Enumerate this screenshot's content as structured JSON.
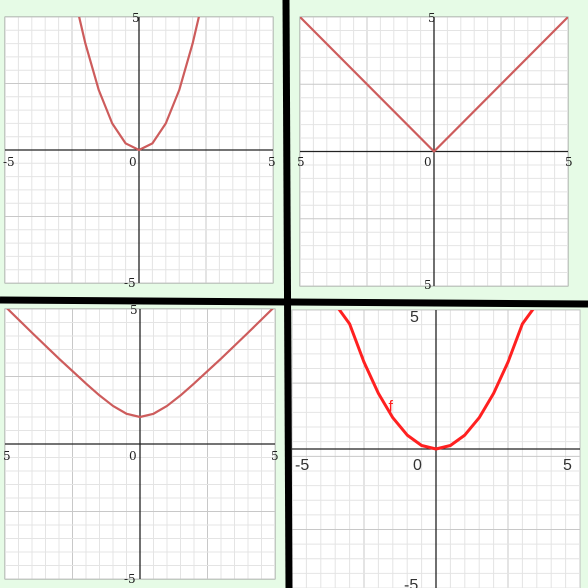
{
  "chart_data": [
    {
      "type": "line",
      "title": "",
      "xlim": [
        -5,
        5
      ],
      "ylim": [
        -5,
        5
      ],
      "grid": true,
      "x_tick_labels": [
        "-5",
        "0",
        "5"
      ],
      "y_tick_labels": [
        "5",
        "-5"
      ],
      "series": [
        {
          "x": [
            -2.3,
            -2,
            -1.5,
            -1,
            -0.5,
            0,
            0.5,
            1,
            1.5,
            2,
            2.3
          ],
          "y": [
            5.29,
            4,
            2.25,
            1,
            0.25,
            0,
            0.25,
            1,
            2.25,
            4,
            5.29
          ],
          "color": "#cd5c5c"
        }
      ]
    },
    {
      "type": "line",
      "title": "",
      "xlim": [
        -5,
        5
      ],
      "ylim": [
        -5,
        5
      ],
      "grid": true,
      "x_tick_labels": [
        "5",
        "0",
        "5"
      ],
      "y_tick_labels": [
        "5",
        "5"
      ],
      "series": [
        {
          "x": [
            -5,
            0,
            5
          ],
          "y": [
            5,
            0,
            5
          ],
          "color": "#cd5c5c"
        }
      ]
    },
    {
      "type": "line",
      "title": "",
      "xlim": [
        -5,
        5
      ],
      "ylim": [
        -5,
        5
      ],
      "grid": true,
      "x_tick_labels": [
        "5",
        "0",
        "5"
      ],
      "y_tick_labels": [
        "5",
        "-5"
      ],
      "series": [
        {
          "x": [
            -5,
            -4,
            -3,
            -2,
            -1.5,
            -1,
            -0.5,
            0,
            0.5,
            1,
            1.5,
            2,
            3,
            4,
            5
          ],
          "y": [
            5.1,
            4.12,
            3.16,
            2.24,
            1.8,
            1.41,
            1.12,
            1,
            1.12,
            1.41,
            1.8,
            2.24,
            3.16,
            4.12,
            5.1
          ],
          "color": "#cd5c5c"
        }
      ]
    },
    {
      "type": "line",
      "title": "",
      "xlim": [
        -5,
        5
      ],
      "ylim": [
        -5,
        5
      ],
      "grid": true,
      "x_tick_labels": [
        "-5",
        "0",
        "5"
      ],
      "y_tick_labels": [
        "5",
        "-5"
      ],
      "series": [
        {
          "name": "f",
          "x": [
            -3.7,
            -3,
            -2.5,
            -2,
            -1.5,
            -1,
            -0.5,
            0,
            0.5,
            1,
            1.5,
            2,
            2.5,
            3,
            3.7
          ],
          "y": [
            5.5,
            4.5,
            3.125,
            2,
            1.125,
            0.5,
            0.125,
            0,
            0.125,
            0.5,
            1.125,
            2,
            3.125,
            4.5,
            5.5
          ],
          "color": "#ff2020"
        }
      ]
    }
  ]
}
